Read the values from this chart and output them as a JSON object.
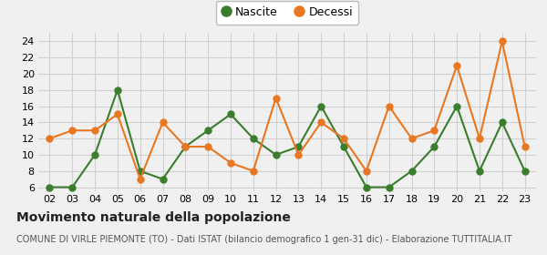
{
  "years": [
    "02",
    "03",
    "04",
    "05",
    "06",
    "07",
    "08",
    "09",
    "10",
    "11",
    "12",
    "13",
    "14",
    "15",
    "16",
    "17",
    "18",
    "19",
    "20",
    "21",
    "22",
    "23"
  ],
  "nascite": [
    6,
    6,
    10,
    18,
    8,
    7,
    11,
    13,
    15,
    12,
    10,
    11,
    16,
    11,
    6,
    6,
    8,
    11,
    16,
    8,
    14,
    8
  ],
  "decessi": [
    12,
    13,
    13,
    15,
    7,
    14,
    11,
    11,
    9,
    8,
    17,
    10,
    14,
    12,
    8,
    16,
    12,
    13,
    21,
    12,
    24,
    11
  ],
  "nascite_color": "#3a7d2c",
  "decessi_color": "#e87722",
  "bg_color": "#f0f0f0",
  "grid_color": "#d0d0d0",
  "ylim_min": 5.5,
  "ylim_max": 25.0,
  "yticks": [
    6,
    8,
    10,
    12,
    14,
    16,
    18,
    20,
    22,
    24
  ],
  "title": "Movimento naturale della popolazione",
  "subtitle": "COMUNE DI VIRLE PIEMONTE (TO) - Dati ISTAT (bilancio demografico 1 gen-31 dic) - Elaborazione TUTTITALIA.IT",
  "legend_nascite": "Nascite",
  "legend_decessi": "Decessi",
  "title_fontsize": 10,
  "subtitle_fontsize": 7,
  "tick_fontsize": 8,
  "legend_fontsize": 9,
  "marker_size": 5,
  "linewidth": 1.5
}
